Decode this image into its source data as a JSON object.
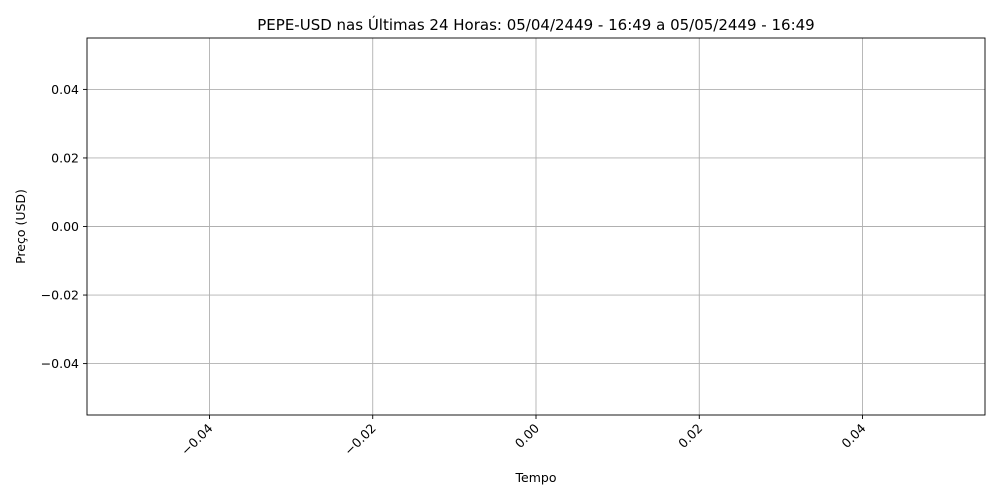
{
  "chart_data": {
    "type": "line",
    "title": "PEPE-USD nas Últimas 24 Horas: 05/04/2449 - 16:49 a 05/05/2449 - 16:49",
    "xlabel": "Tempo",
    "ylabel": "Preço (USD)",
    "x": [],
    "series": [
      {
        "values": []
      }
    ],
    "xlim": [
      -0.055,
      0.055
    ],
    "ylim": [
      -0.055,
      0.055
    ],
    "x_ticks": [
      -0.04,
      -0.02,
      0.0,
      0.02,
      0.04
    ],
    "x_tick_labels": [
      "−0.04",
      "−0.02",
      "0.00",
      "0.02",
      "0.04"
    ],
    "y_ticks": [
      -0.04,
      -0.02,
      0.0,
      0.02,
      0.04
    ],
    "y_tick_labels": [
      "−0.04",
      "−0.02",
      "0.00",
      "0.02",
      "0.04"
    ],
    "x_tick_rotation_deg": 45,
    "grid": true,
    "legend": "none",
    "colors": {
      "grid": "#b0b0b0",
      "axes": "#000000",
      "background": "#ffffff"
    }
  }
}
